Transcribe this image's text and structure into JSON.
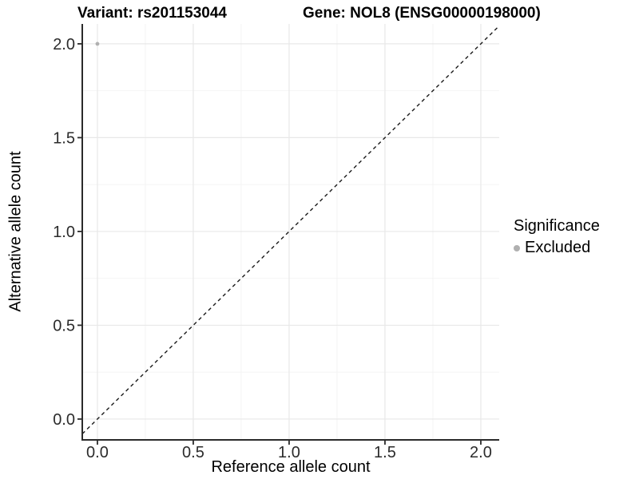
{
  "chart_data": {
    "type": "scatter",
    "titles": {
      "left": "Variant: rs201153044",
      "right": "Gene: NOL8 (ENSG00000198000)"
    },
    "xlabel": "Reference allele count",
    "ylabel": "Alternative allele count",
    "x_ticks": {
      "values": [
        0.0,
        0.5,
        1.0,
        1.5,
        2.0
      ],
      "labels": [
        "0.0",
        "0.5",
        "1.0",
        "1.5",
        "2.0"
      ]
    },
    "y_ticks": {
      "values": [
        0.0,
        0.5,
        1.0,
        1.5,
        2.0
      ],
      "labels": [
        "0.0",
        "0.5",
        "1.0",
        "1.5",
        "2.0"
      ]
    },
    "minor_tick_values": [
      0.25,
      0.75,
      1.25,
      1.75
    ],
    "x_range": [
      -0.079,
      2.096
    ],
    "y_range": [
      -0.111,
      2.106
    ],
    "grid": true,
    "points": [
      {
        "x": 0.0,
        "y": 2.0,
        "series": "Excluded"
      }
    ],
    "reference_line": {
      "kind": "identity y=x",
      "style": "dashed",
      "color": "#1a1a1a"
    },
    "legend": {
      "title": "Significance",
      "position": "right",
      "items": [
        {
          "label": "Excluded",
          "color": "#b0b0b0"
        }
      ]
    },
    "colors": {
      "point": "#b0b0b0",
      "grid_major": "#e8e8e8",
      "grid_minor": "#f4f4f4",
      "axis_line": "#2b2b2b",
      "tick_text": "#2b2b2b"
    }
  }
}
